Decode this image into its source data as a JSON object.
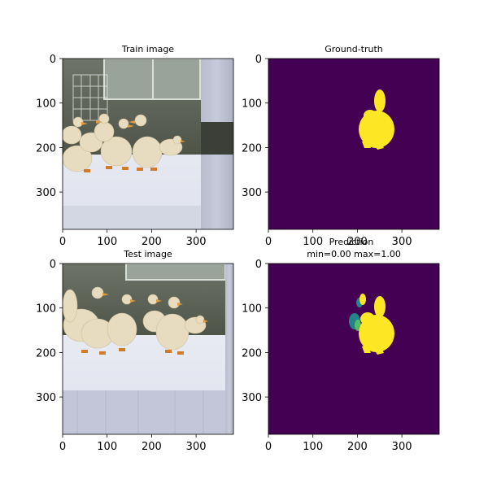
{
  "figure": {
    "panels": [
      {
        "id": "train",
        "title_lines": [
          "Train image"
        ],
        "kind": "photo-train"
      },
      {
        "id": "gt",
        "title_lines": [
          "Ground-truth"
        ],
        "kind": "mask-gt"
      },
      {
        "id": "test",
        "title_lines": [
          "Test image"
        ],
        "kind": "photo-test"
      },
      {
        "id": "pred",
        "title_lines": [
          "Prediction",
          "min=0.00 max=1.00"
        ],
        "kind": "mask-pred"
      }
    ]
  },
  "chart_data": [
    {
      "type": "heatmap",
      "title": "Train image",
      "xticks": [
        0,
        100,
        200,
        300
      ],
      "yticks": [
        0,
        100,
        200,
        300
      ],
      "xlim": [
        0,
        384
      ],
      "ylim": [
        384,
        0
      ]
    },
    {
      "type": "heatmap",
      "title": "Ground-truth",
      "xticks": [
        0,
        100,
        200,
        300
      ],
      "yticks": [
        0,
        100,
        200,
        300
      ],
      "xlim": [
        0,
        384
      ],
      "ylim": [
        384,
        0
      ],
      "colormap": "viridis",
      "colors": {
        "background": "#440154",
        "foreground": "#fde725"
      }
    },
    {
      "type": "heatmap",
      "title": "Test image",
      "xticks": [
        0,
        100,
        200,
        300
      ],
      "yticks": [
        0,
        100,
        200,
        300
      ],
      "xlim": [
        0,
        384
      ],
      "ylim": [
        384,
        0
      ]
    },
    {
      "type": "heatmap",
      "title": "Prediction",
      "subtitle": "min=0.00 max=1.00",
      "xticks": [
        0,
        100,
        200,
        300
      ],
      "yticks": [
        0,
        100,
        200,
        300
      ],
      "xlim": [
        0,
        384
      ],
      "ylim": [
        384,
        0
      ],
      "colormap": "viridis",
      "value_range": [
        0.0,
        1.0
      ],
      "colors": {
        "background": "#440154",
        "foreground": "#fde725",
        "mid": "#21918c"
      }
    }
  ]
}
